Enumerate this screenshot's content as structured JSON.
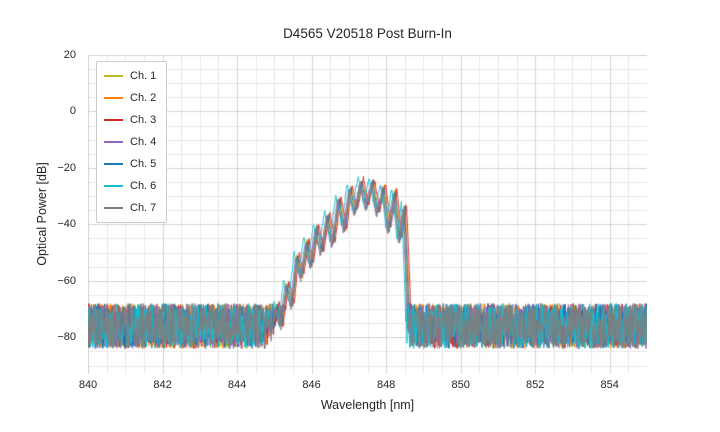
{
  "chart_data": {
    "type": "line",
    "title": "D4565 V20518 Post Burn-In",
    "xlabel": "Wavelength [nm]",
    "ylabel": "Optical Power [dB]",
    "xlim": [
      840,
      855
    ],
    "ylim": [
      -93,
      20
    ],
    "x_ticks": [
      840,
      842,
      844,
      846,
      848,
      850,
      852,
      854
    ],
    "y_ticks": [
      20,
      0,
      -20,
      -40,
      -60,
      -80
    ],
    "x_minor_step": 0.5,
    "y_minor_step": 5,
    "grid": true,
    "legend_position": "upper left",
    "grid_major_color": "#d4d4d4",
    "grid_minor_color": "#e9e9e9",
    "noise_floor": {
      "mean": -76,
      "amplitude": 16
    },
    "signal_jitter_db": 1.6,
    "signal_envelope": [
      [
        844.7,
        -90
      ],
      [
        844.82,
        -73
      ],
      [
        844.92,
        -80
      ],
      [
        845.06,
        -69
      ],
      [
        845.18,
        -77
      ],
      [
        845.32,
        -61
      ],
      [
        845.46,
        -69
      ],
      [
        845.6,
        -51
      ],
      [
        845.72,
        -59
      ],
      [
        845.86,
        -46
      ],
      [
        845.98,
        -55
      ],
      [
        846.12,
        -41
      ],
      [
        846.26,
        -50
      ],
      [
        846.42,
        -37
      ],
      [
        846.56,
        -47
      ],
      [
        846.72,
        -31
      ],
      [
        846.88,
        -42
      ],
      [
        847.02,
        -27
      ],
      [
        847.16,
        -36
      ],
      [
        847.32,
        -24.5
      ],
      [
        847.46,
        -34
      ],
      [
        847.62,
        -25
      ],
      [
        847.76,
        -36
      ],
      [
        847.92,
        -27
      ],
      [
        848.06,
        -42
      ],
      [
        848.22,
        -28.5
      ],
      [
        848.36,
        -46
      ],
      [
        848.48,
        -34
      ],
      [
        848.56,
        -60
      ],
      [
        848.64,
        -92
      ]
    ],
    "series": [
      {
        "name": "Ch. 1",
        "color": "#bcbd22",
        "dx": 0.0,
        "dy": 0
      },
      {
        "name": "Ch. 2",
        "color": "#ff7f0e",
        "dx": 0.04,
        "dy": 0.5
      },
      {
        "name": "Ch. 3",
        "color": "#d62728",
        "dx": 0.07,
        "dy": 1
      },
      {
        "name": "Ch. 4",
        "color": "#9467bd",
        "dx": -0.03,
        "dy": -0.5
      },
      {
        "name": "Ch. 5",
        "color": "#1f77b4",
        "dx": 0.02,
        "dy": 0
      },
      {
        "name": "Ch. 6",
        "color": "#17becf",
        "dx": -0.07,
        "dy": 1.5
      },
      {
        "name": "Ch. 7",
        "color": "#7f7f7f",
        "dx": -0.01,
        "dy": -1
      }
    ]
  }
}
